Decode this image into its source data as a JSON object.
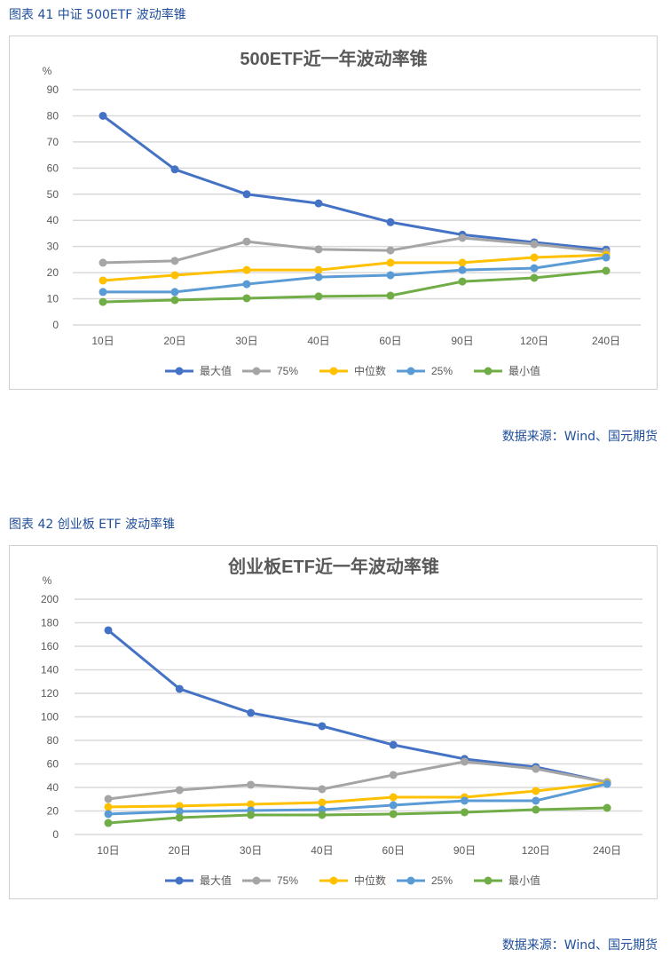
{
  "figures": [
    {
      "caption": "图表 41  中证 500ETF 波动率锥",
      "source": "数据来源：Wind、国元期货"
    },
    {
      "caption": "图表 42  创业板 ETF 波动率锥",
      "source": "数据来源：Wind、国元期货"
    }
  ],
  "colors": {
    "最大值": "#4472c4",
    "75%": "#a5a5a5",
    "中位数": "#ffc000",
    "25%": "#5b9bd5",
    "最小值": "#70ad47"
  },
  "chart_data": [
    {
      "type": "line",
      "title": "500ETF近一年波动率锥",
      "ylabel": "%",
      "ylim": [
        0,
        90
      ],
      "yticks": [
        0,
        10,
        20,
        30,
        40,
        50,
        60,
        70,
        80,
        90
      ],
      "grid": true,
      "legend_position": "bottom",
      "categories": [
        "10日",
        "20日",
        "30日",
        "40日",
        "60日",
        "90日",
        "120日",
        "240日"
      ],
      "series": [
        {
          "name": "最大值",
          "values": [
            80,
            59.5,
            50,
            46.5,
            39.3,
            34.5,
            31.6,
            28.8
          ]
        },
        {
          "name": "75%",
          "values": [
            23.8,
            24.5,
            31.9,
            28.9,
            28.5,
            33.3,
            30.9,
            27.9
          ]
        },
        {
          "name": "中位数",
          "values": [
            17,
            19,
            21,
            21,
            23.8,
            23.8,
            25.8,
            26.8
          ]
        },
        {
          "name": "25%",
          "values": [
            12.6,
            12.6,
            15.6,
            18.3,
            19,
            21,
            21.7,
            25.8
          ]
        },
        {
          "name": "最小值",
          "values": [
            8.8,
            9.5,
            10.2,
            10.9,
            11.2,
            16.6,
            18,
            20.7
          ]
        }
      ]
    },
    {
      "type": "line",
      "title": "创业板ETF近一年波动率锥",
      "ylabel": "%",
      "ylim": [
        0,
        200
      ],
      "yticks": [
        0,
        20,
        40,
        60,
        80,
        100,
        120,
        140,
        160,
        180,
        200
      ],
      "grid": true,
      "legend_position": "bottom",
      "categories": [
        "10日",
        "20日",
        "30日",
        "40日",
        "60日",
        "90日",
        "120日",
        "240日"
      ],
      "series": [
        {
          "name": "最大值",
          "values": [
            173.6,
            123.8,
            103.4,
            92.1,
            76.2,
            64.2,
            57.4,
            44.5
          ]
        },
        {
          "name": "75%",
          "values": [
            30.2,
            37.7,
            42.3,
            38.5,
            50.6,
            61.9,
            55.8,
            44.5
          ]
        },
        {
          "name": "中位数",
          "values": [
            23.4,
            24.2,
            25.7,
            27.2,
            31.7,
            31.7,
            37,
            43.8
          ]
        },
        {
          "name": "25%",
          "values": [
            17.4,
            19.6,
            20.4,
            21.1,
            24.9,
            28.7,
            28.7,
            43
          ]
        },
        {
          "name": "最小值",
          "values": [
            9.8,
            14.3,
            16.6,
            16.6,
            17.4,
            18.9,
            21.1,
            22.6
          ]
        }
      ]
    }
  ]
}
